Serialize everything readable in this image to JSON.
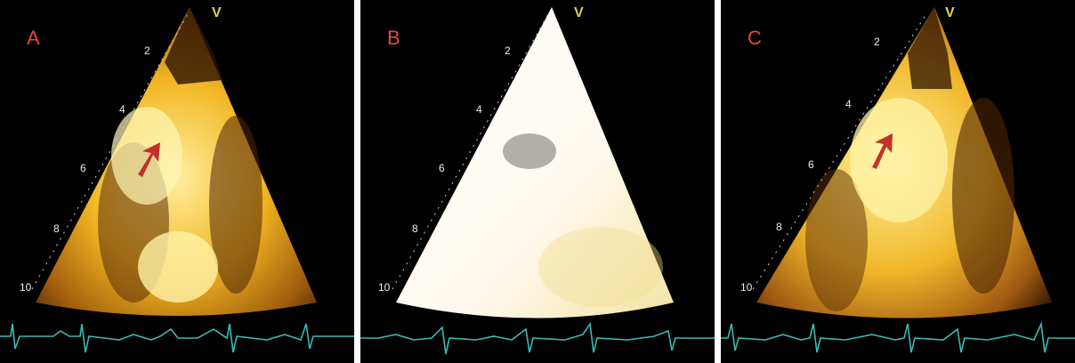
{
  "panels": [
    {
      "label": "A",
      "probe_marker": "V",
      "depth_ticks": [
        "2",
        "4",
        "6",
        "8",
        "10"
      ],
      "style": "warm",
      "has_arrow": true
    },
    {
      "label": "B",
      "probe_marker": "V",
      "depth_ticks": [
        "2",
        "4",
        "6",
        "8",
        "10"
      ],
      "style": "washout",
      "has_arrow": false
    },
    {
      "label": "C",
      "probe_marker": "V",
      "depth_ticks": [
        "2",
        "4",
        "6",
        "8",
        "10"
      ],
      "style": "warm",
      "has_arrow": true
    }
  ],
  "colors": {
    "label": "#e04a3a",
    "arrow": "#c4302a",
    "ecg_trace": "#3ab9b5",
    "probe_marker": "#e6d04a",
    "depth_text": "#f3f0e0",
    "separator": "#ffffff"
  }
}
